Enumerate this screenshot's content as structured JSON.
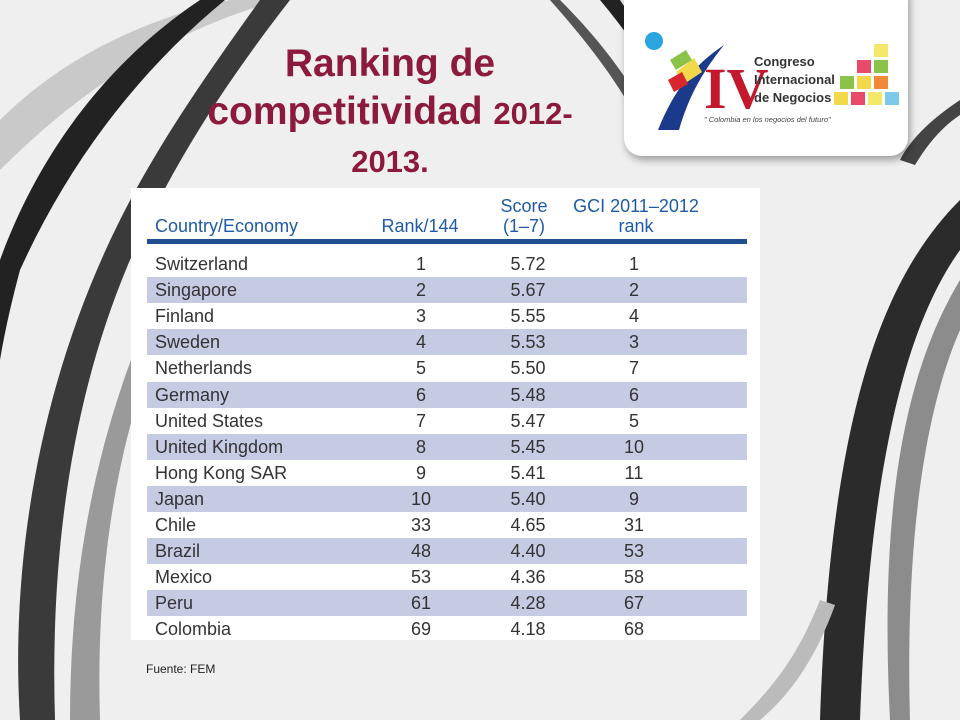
{
  "title": {
    "line1": "Ranking de",
    "line2_text": "competitividad ",
    "line2_year": "2012-",
    "line3": "2013."
  },
  "logo": {
    "numeral": "IV",
    "line1": "Congreso",
    "line2": "Internacional",
    "line3": "de Negocios",
    "tagline": "\" Colombia en los negocios del futuro\""
  },
  "table": {
    "headers": {
      "country": "Country/Economy",
      "rank": "Rank/144",
      "score_line1": "Score",
      "score_line2": "(1–7)",
      "gci_line1": "GCI 2011–2012",
      "gci_line2": "rank"
    },
    "rows": [
      {
        "country": "Switzerland",
        "rank": "1",
        "score": "5.72",
        "gci": "1"
      },
      {
        "country": "Singapore",
        "rank": "2",
        "score": "5.67",
        "gci": "2"
      },
      {
        "country": "Finland",
        "rank": "3",
        "score": "5.55",
        "gci": "4"
      },
      {
        "country": "Sweden",
        "rank": "4",
        "score": "5.53",
        "gci": "3"
      },
      {
        "country": "Netherlands",
        "rank": "5",
        "score": "5.50",
        "gci": "7"
      },
      {
        "country": "Germany",
        "rank": "6",
        "score": "5.48",
        "gci": "6"
      },
      {
        "country": "United States",
        "rank": "7",
        "score": "5.47",
        "gci": "5"
      },
      {
        "country": "United Kingdom",
        "rank": "8",
        "score": "5.45",
        "gci": "10"
      },
      {
        "country": "Hong Kong SAR",
        "rank": "9",
        "score": "5.41",
        "gci": "11"
      },
      {
        "country": "Japan",
        "rank": "10",
        "score": "5.40",
        "gci": "9"
      },
      {
        "country": "Chile",
        "rank": "33",
        "score": "4.65",
        "gci": "31"
      },
      {
        "country": "Brazil",
        "rank": "48",
        "score": "4.40",
        "gci": "53"
      },
      {
        "country": "Mexico",
        "rank": "53",
        "score": "4.36",
        "gci": "58"
      },
      {
        "country": "Peru",
        "rank": "61",
        "score": "4.28",
        "gci": "67"
      },
      {
        "country": "Colombia",
        "rank": "69",
        "score": "4.18",
        "gci": "68"
      }
    ]
  },
  "source": "Fuente:  FEM",
  "colors": {
    "title": "#8b1a3c",
    "header_text": "#1f5aa6",
    "header_rule": "#1f4f8f",
    "row_shade": "#c6cbe4"
  }
}
